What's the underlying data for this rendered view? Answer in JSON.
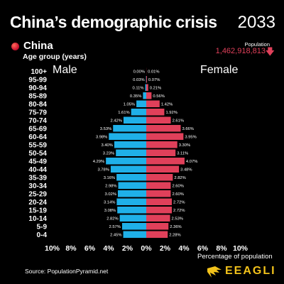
{
  "header": {
    "title": "China’s demographic crisis",
    "year": "2033",
    "population_label": "Population",
    "population_value": "1,462,918,813",
    "population_trend_icon": "down-arrow-icon",
    "country": "China",
    "country_icon": "china-flag-dot-icon",
    "age_group_title": "Age group (years)"
  },
  "footer": {
    "source": "Source: PopulationPyramid.net",
    "brand": "EEAGLI",
    "brand_icon": "eagle-logo-icon"
  },
  "colors": {
    "male": "#1fb0e8",
    "female": "#e0405a",
    "background": "#000000",
    "brand": "#f2c21b"
  },
  "chart_data": {
    "type": "bar",
    "orientation": "horizontal-pyramid",
    "categories": [
      "100+",
      "95-99",
      "90-94",
      "85-89",
      "80-84",
      "75-79",
      "70-74",
      "65-69",
      "60-64",
      "55-59",
      "50-54",
      "45-49",
      "40-44",
      "35-39",
      "30-34",
      "25-29",
      "20-24",
      "15-19",
      "10-14",
      "5-9",
      "0-4"
    ],
    "series": [
      {
        "name": "Male",
        "values": [
          0.0,
          0.03,
          0.11,
          0.35,
          1.05,
          1.61,
          2.42,
          3.53,
          3.98,
          3.4,
          3.23,
          4.29,
          3.78,
          3.16,
          2.98,
          3.02,
          3.14,
          3.08,
          2.82,
          2.57,
          2.45
        ],
        "labels": [
          "0.00%",
          "0.03%",
          "0.11%",
          "0.35%",
          "1.05%",
          "1.61%",
          "2.42%",
          "3.53%",
          "3.98%",
          "3.40%",
          "3.23%",
          "4.29%",
          "3.78%",
          "3.16%",
          "2.98%",
          "3.02%",
          "3.14%",
          "3.08%",
          "2.82%",
          "2.57%",
          "2.45%"
        ]
      },
      {
        "name": "Female",
        "values": [
          0.01,
          0.07,
          0.21,
          0.56,
          1.42,
          1.92,
          2.61,
          3.66,
          3.95,
          3.3,
          3.11,
          4.07,
          3.48,
          2.82,
          2.6,
          2.6,
          2.72,
          2.72,
          2.53,
          2.36,
          2.28
        ],
        "labels": [
          "0.01%",
          "0.07%",
          "0.21%",
          "0.56%",
          "1.42%",
          "1.92%",
          "2.61%",
          "3.66%",
          "3.95%",
          "3.30%",
          "3.11%",
          "4.07%",
          "3.48%",
          "2.82%",
          "2.60%",
          "2.60%",
          "2.72%",
          "2.72%",
          "2.53%",
          "2.36%",
          "2.28%"
        ]
      }
    ],
    "xlim": [
      -10,
      10
    ],
    "xticks": [
      "10%",
      "8%",
      "6%",
      "4%",
      "2%",
      "0%",
      "2%",
      "4%",
      "6%",
      "8%",
      "10%"
    ],
    "xlabel": "Percentage of population",
    "ylabel": "Age group (years)",
    "grid": false,
    "legend": "none"
  }
}
